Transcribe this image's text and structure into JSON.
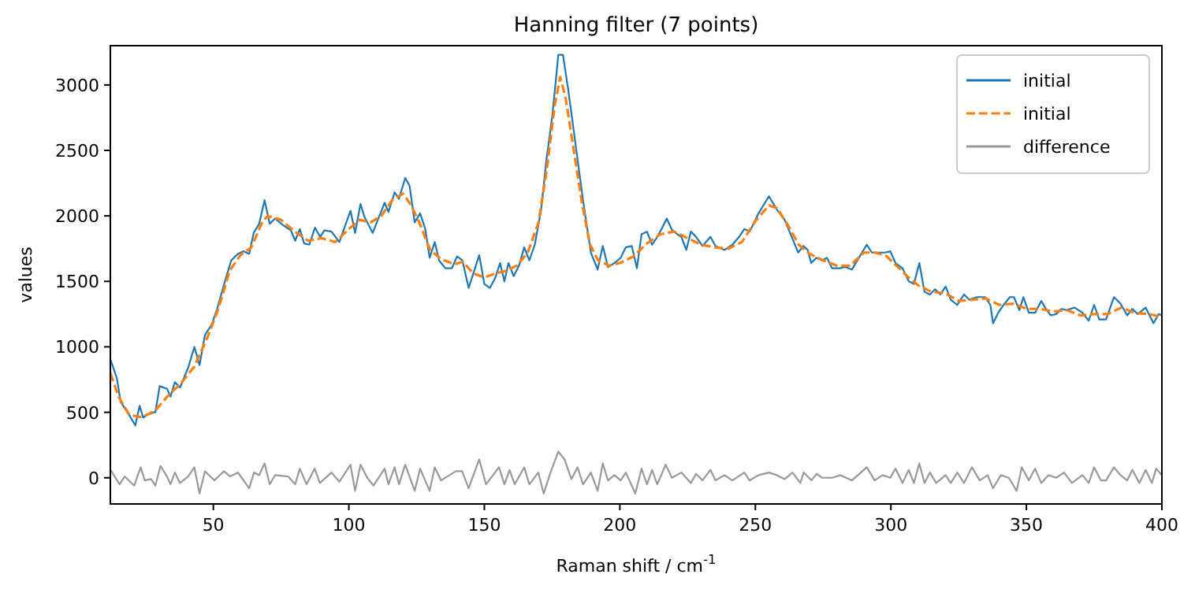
{
  "chart_data": {
    "type": "line",
    "title": "Hanning filter (7 points)",
    "xlabel": "Raman shift / cm$^{-1}$",
    "ylabel": "values",
    "xlim": [
      12,
      400
    ],
    "ylim": [
      -200,
      3300
    ],
    "xticks": [
      50,
      100,
      150,
      200,
      250,
      300,
      350,
      400
    ],
    "yticks": [
      0,
      500,
      1000,
      1500,
      2000,
      2500,
      3000
    ],
    "grid": false,
    "legend": "top right",
    "series": [
      {
        "name": "initial",
        "color": "#1f77b4",
        "line_style": "solid",
        "x": [
          12.1,
          14.4,
          15.8,
          18.9,
          21.2,
          22.8,
          24.1,
          27.0,
          28.6,
          30.2,
          32.9,
          34.2,
          35.8,
          37.7,
          40.7,
          43.0,
          44.9,
          46.9,
          49.4,
          51.4,
          53.3,
          55.3,
          56.6,
          59.1,
          61.1,
          63.2,
          64.9,
          66.9,
          68.9,
          70.8,
          72.8,
          75.7,
          78.6,
          80.2,
          81.9,
          83.5,
          85.4,
          87.5,
          89.4,
          91.0,
          93.6,
          96.5,
          100.6,
          102.3,
          104.3,
          105.8,
          108.8,
          110.7,
          113.2,
          114.6,
          116.9,
          118.5,
          120.8,
          122.4,
          124.3,
          126.3,
          128.2,
          129.8,
          131.7,
          133.3,
          135.6,
          138.0,
          139.9,
          141.9,
          144.2,
          146.1,
          148.1,
          150,
          152,
          153.9,
          155.8,
          157.4,
          158.9,
          160.8,
          162.8,
          164.7,
          166.6,
          168.6,
          170.9,
          172.8,
          175.1,
          177.3,
          179.0,
          180.9,
          183.5,
          186.4,
          189.3,
          191.8,
          193.7,
          195.6,
          198,
          200.3,
          202.2,
          204.4,
          206.3,
          208.0,
          210.0,
          211.9,
          213.8,
          215.4,
          217.3,
          219.3,
          221.2,
          222.7,
          224.5,
          226.2,
          228.1,
          230.5,
          233.4,
          235.3,
          238.6,
          241.5,
          244.0,
          245.9,
          247.9,
          251.2,
          255.0,
          257.9,
          260.8,
          263.8,
          265.8,
          267.7,
          269.3,
          270.6,
          272.5,
          274.5,
          276.4,
          278.3,
          281.2,
          283.1,
          285.6,
          288.2,
          291.1,
          293.0,
          295.3,
          297.9,
          299.8,
          301.7,
          304.3,
          306.6,
          308.5,
          310.5,
          312.4,
          314.4,
          316.3,
          318.3,
          320.2,
          322.1,
          324.5,
          327.0,
          328.9,
          331.8,
          334.8,
          336.7,
          337.7,
          339.6,
          341.6,
          343.9,
          345.4,
          347.4,
          348.9,
          350.9,
          353.2,
          355.5,
          357.5,
          359.0,
          361.0,
          362.9,
          364.9,
          367.8,
          370.7,
          373.0,
          375.0,
          376.9,
          379.4,
          382.3,
          384.7,
          387.2,
          389.1,
          391.1,
          394.0,
          396.9,
          398.8,
          400
        ],
        "values": [
          900,
          760,
          580,
          480,
          400,
          550,
          460,
          500,
          500,
          700,
          680,
          620,
          730,
          690,
          840,
          1000,
          860,
          1090,
          1170,
          1290,
          1430,
          1570,
          1660,
          1710,
          1730,
          1710,
          1870,
          1940,
          2120,
          1940,
          1980,
          1930,
          1890,
          1810,
          1900,
          1790,
          1780,
          1910,
          1840,
          1890,
          1880,
          1800,
          2040,
          1870,
          2090,
          1990,
          1870,
          1970,
          2100,
          2030,
          2180,
          2130,
          2290,
          2230,
          1950,
          2020,
          1900,
          1680,
          1800,
          1660,
          1600,
          1600,
          1690,
          1660,
          1450,
          1570,
          1700,
          1480,
          1450,
          1520,
          1640,
          1500,
          1640,
          1540,
          1620,
          1760,
          1660,
          1780,
          2040,
          2410,
          2770,
          3230,
          3230,
          2970,
          2570,
          2120,
          1720,
          1590,
          1770,
          1610,
          1640,
          1680,
          1760,
          1770,
          1600,
          1860,
          1880,
          1780,
          1840,
          1900,
          1980,
          1890,
          1860,
          1840,
          1740,
          1880,
          1840,
          1770,
          1840,
          1770,
          1740,
          1780,
          1840,
          1900,
          1880,
          2020,
          2150,
          2050,
          1970,
          1820,
          1720,
          1770,
          1740,
          1640,
          1680,
          1660,
          1680,
          1600,
          1600,
          1610,
          1590,
          1680,
          1780,
          1720,
          1720,
          1720,
          1730,
          1640,
          1600,
          1500,
          1480,
          1640,
          1420,
          1400,
          1440,
          1400,
          1460,
          1360,
          1320,
          1400,
          1360,
          1380,
          1380,
          1320,
          1180,
          1260,
          1320,
          1380,
          1380,
          1280,
          1380,
          1260,
          1260,
          1350,
          1280,
          1240,
          1250,
          1290,
          1280,
          1300,
          1260,
          1200,
          1320,
          1210,
          1210,
          1380,
          1330,
          1240,
          1290,
          1250,
          1300,
          1180,
          1250,
          1240
        ]
      },
      {
        "name": "initial",
        "color": "#ff7f0e",
        "line_style": "dashed",
        "x": [
          12,
          15,
          19,
          23,
          28,
          33,
          38,
          43,
          48,
          52,
          56,
          60,
          64,
          68,
          70,
          75,
          80,
          85,
          90,
          95,
          100,
          104,
          108,
          112,
          116,
          120,
          123,
          126,
          130,
          134,
          139,
          142,
          146,
          150,
          154,
          158,
          162,
          166,
          170,
          173,
          176,
          178,
          180,
          183,
          186,
          189,
          192,
          196,
          200,
          205,
          210,
          215,
          220,
          225,
          230,
          235,
          240,
          245,
          250,
          255,
          258,
          262,
          266,
          270,
          275,
          280,
          285,
          290,
          294,
          298,
          302,
          306,
          310,
          315,
          320,
          325,
          330,
          335,
          340,
          345,
          350,
          355,
          360,
          365,
          370,
          375,
          380,
          385,
          390,
          395,
          400
        ],
        "values": [
          800,
          620,
          480,
          465,
          500,
          620,
          720,
          850,
          1080,
          1300,
          1580,
          1700,
          1760,
          1950,
          2000,
          1970,
          1880,
          1810,
          1830,
          1800,
          1900,
          1970,
          1950,
          2000,
          2120,
          2170,
          2080,
          1950,
          1740,
          1670,
          1630,
          1650,
          1560,
          1530,
          1560,
          1580,
          1620,
          1720,
          1950,
          2350,
          2850,
          3060,
          2900,
          2500,
          2100,
          1780,
          1660,
          1620,
          1640,
          1690,
          1790,
          1860,
          1880,
          1830,
          1780,
          1760,
          1750,
          1800,
          1960,
          2080,
          2060,
          1930,
          1780,
          1710,
          1660,
          1620,
          1620,
          1720,
          1720,
          1700,
          1620,
          1540,
          1470,
          1420,
          1410,
          1350,
          1360,
          1370,
          1320,
          1330,
          1290,
          1290,
          1270,
          1280,
          1240,
          1250,
          1250,
          1300,
          1260,
          1250,
          1230
        ]
      },
      {
        "name": "difference",
        "color": "#999999",
        "line_style": "solid",
        "x": [
          12.1,
          15.4,
          17.3,
          20.8,
          23.2,
          24.7,
          27.0,
          28.6,
          30.5,
          32.9,
          34.2,
          35.8,
          37.7,
          40.7,
          43.0,
          44.9,
          46.9,
          50.4,
          53.9,
          56.2,
          59.1,
          63.2,
          65.0,
          66.9,
          68.9,
          70.8,
          72.8,
          77.6,
          80.2,
          81.9,
          84.4,
          87.4,
          89.3,
          93.6,
          96.5,
          100.6,
          102.3,
          104.3,
          106.8,
          109.1,
          113.2,
          114.6,
          116.9,
          118.5,
          120.8,
          124.3,
          126.3,
          129.8,
          131.7,
          134.0,
          139.5,
          141.8,
          144.2,
          148.1,
          150.6,
          155.4,
          157.4,
          159.3,
          161.2,
          164.7,
          166.6,
          169.9,
          171.9,
          174.4,
          177.3,
          179.6,
          182.1,
          184.4,
          186.4,
          189.3,
          191.8,
          193.7,
          195.6,
          198.0,
          200.3,
          202.2,
          205.7,
          208.0,
          210.0,
          211.9,
          213.8,
          216.9,
          219.2,
          222.7,
          226.2,
          228.1,
          230.5,
          233.4,
          235.3,
          238.6,
          241.5,
          245.9,
          247.9,
          251.2,
          255.0,
          257.9,
          260.8,
          263.7,
          266.6,
          267.8,
          270.7,
          272.6,
          274.6,
          278.4,
          281.4,
          285.6,
          291.1,
          294.0,
          296.9,
          299.8,
          301.7,
          304.3,
          306.6,
          308.5,
          310.5,
          312.4,
          314.4,
          316.7,
          320.2,
          322.1,
          324.5,
          327.0,
          329.9,
          332.8,
          335.7,
          337.7,
          340.6,
          343.5,
          346.4,
          348.3,
          350.9,
          353.2,
          355.5,
          358.1,
          361.0,
          363.9,
          366.8,
          370.7,
          373.0,
          375.0,
          377.5,
          379.4,
          382.3,
          384.7,
          387.2,
          389.1,
          391.7,
          394.0,
          396.3,
          397.9,
          400
        ],
        "values": [
          60,
          -50,
          10,
          -60,
          80,
          -20,
          -10,
          -60,
          90,
          10,
          -50,
          40,
          -40,
          10,
          80,
          -120,
          50,
          -20,
          50,
          10,
          40,
          -80,
          40,
          20,
          110,
          -50,
          20,
          10,
          -50,
          70,
          -50,
          70,
          -40,
          40,
          -30,
          100,
          -100,
          100,
          0,
          -60,
          70,
          -50,
          80,
          -50,
          100,
          -100,
          70,
          -100,
          80,
          -20,
          50,
          50,
          -80,
          140,
          -50,
          80,
          -50,
          60,
          -50,
          80,
          -50,
          40,
          -120,
          40,
          200,
          140,
          -10,
          80,
          -50,
          40,
          -100,
          110,
          -20,
          20,
          -20,
          40,
          -120,
          70,
          -50,
          60,
          -50,
          100,
          0,
          40,
          -40,
          30,
          -20,
          60,
          -20,
          20,
          -20,
          40,
          -20,
          20,
          40,
          20,
          -10,
          40,
          -40,
          40,
          -20,
          30,
          0,
          0,
          20,
          -20,
          80,
          -20,
          20,
          0,
          70,
          -40,
          60,
          -40,
          110,
          -40,
          40,
          -40,
          20,
          -40,
          40,
          -40,
          80,
          -20,
          20,
          -80,
          20,
          0,
          -100,
          80,
          -20,
          70,
          -40,
          20,
          0,
          40,
          -40,
          20,
          -40,
          80,
          -20,
          -20,
          80,
          20,
          -20,
          60,
          -40,
          60,
          -40,
          70,
          20
        ]
      }
    ]
  }
}
